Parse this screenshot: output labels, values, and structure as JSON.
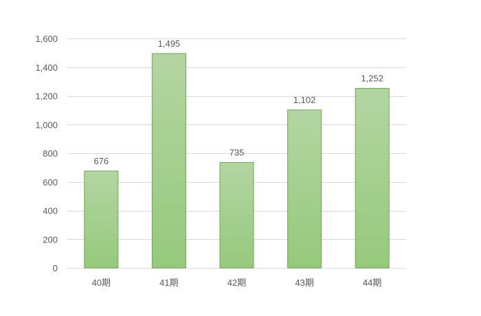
{
  "chart_data": {
    "type": "bar",
    "title": "",
    "xlabel": "",
    "ylabel": "",
    "categories": [
      "40期",
      "41期",
      "42期",
      "43期",
      "44期"
    ],
    "values": [
      676,
      1495,
      735,
      1102,
      1252
    ],
    "value_labels": [
      "676",
      "1,495",
      "735",
      "1,102",
      "1,252"
    ],
    "ylim": [
      0,
      1600
    ],
    "yticks": [
      0,
      200,
      400,
      600,
      800,
      1000,
      1200,
      1400,
      1600
    ],
    "ytick_labels": [
      "0",
      "200",
      "400",
      "600",
      "800",
      "1,000",
      "1,200",
      "1,400",
      "1,600"
    ],
    "grid": true,
    "legend": "none",
    "colors": {
      "bar_top": "#b4d5a2",
      "bar_bottom": "#96c97c",
      "bar_border": "#6aa84f",
      "gridline": "#d9d9d9",
      "text": "#595959"
    }
  }
}
